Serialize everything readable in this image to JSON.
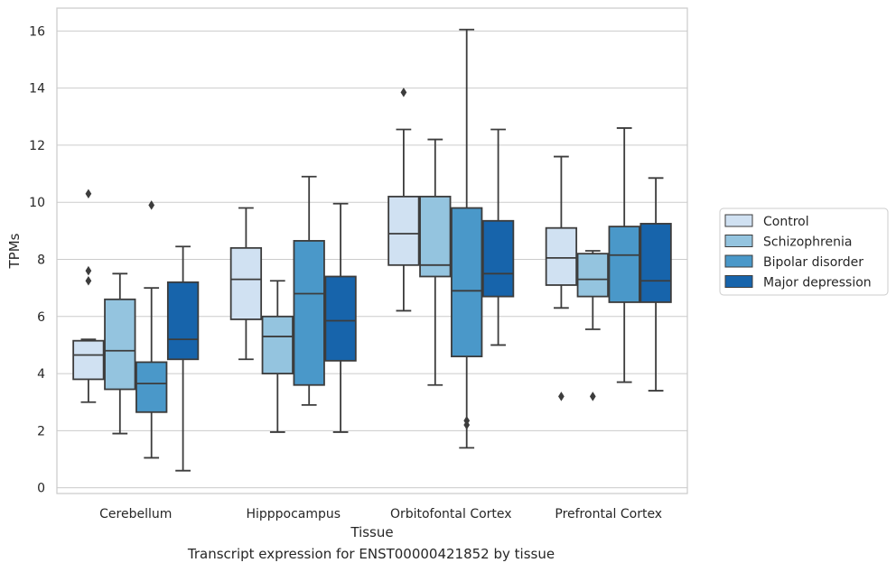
{
  "caption": "Transcript expression for ENST00000421852 by tissue",
  "chart_data": {
    "type": "boxplot",
    "title": "",
    "xlabel": "Tissue",
    "ylabel": "TPMs",
    "ylim": [
      -0.2,
      16.8
    ],
    "yticks": [
      0,
      2,
      4,
      6,
      8,
      10,
      12,
      14,
      16
    ],
    "grid": "horizontal",
    "legend_position": "right",
    "categories": [
      "Cerebellum",
      "Hipppocampus",
      "Orbitofontal Cortex",
      "Prefrontal Cortex"
    ],
    "series": [
      {
        "name": "Control",
        "color": "#d0e1f2",
        "boxes": [
          {
            "whislo": 3.0,
            "q1": 3.8,
            "med": 4.65,
            "q3": 5.15,
            "whishi": 5.2,
            "fliers": [
              7.25,
              7.6,
              10.3
            ]
          },
          {
            "whislo": 4.5,
            "q1": 5.9,
            "med": 7.3,
            "q3": 8.4,
            "whishi": 9.8,
            "fliers": []
          },
          {
            "whislo": 6.2,
            "q1": 7.8,
            "med": 8.9,
            "q3": 10.2,
            "whishi": 12.55,
            "fliers": [
              13.85
            ]
          },
          {
            "whislo": 6.3,
            "q1": 7.1,
            "med": 8.05,
            "q3": 9.1,
            "whishi": 11.6,
            "fliers": [
              3.2
            ]
          }
        ]
      },
      {
        "name": "Schizophrenia",
        "color": "#94c4df",
        "boxes": [
          {
            "whislo": 1.9,
            "q1": 3.45,
            "med": 4.8,
            "q3": 6.6,
            "whishi": 7.5,
            "fliers": []
          },
          {
            "whislo": 1.95,
            "q1": 4.0,
            "med": 5.3,
            "q3": 6.0,
            "whishi": 7.25,
            "fliers": []
          },
          {
            "whislo": 3.6,
            "q1": 7.4,
            "med": 7.8,
            "q3": 10.2,
            "whishi": 12.2,
            "fliers": []
          },
          {
            "whislo": 5.55,
            "q1": 6.7,
            "med": 7.3,
            "q3": 8.2,
            "whishi": 8.3,
            "fliers": [
              3.2
            ]
          }
        ]
      },
      {
        "name": "Bipolar disorder",
        "color": "#4a98c9",
        "boxes": [
          {
            "whislo": 1.05,
            "q1": 2.65,
            "med": 3.65,
            "q3": 4.4,
            "whishi": 7.0,
            "fliers": [
              9.9
            ]
          },
          {
            "whislo": 2.9,
            "q1": 3.6,
            "med": 6.8,
            "q3": 8.65,
            "whishi": 10.9,
            "fliers": []
          },
          {
            "whislo": 1.4,
            "q1": 4.6,
            "med": 6.9,
            "q3": 9.8,
            "whishi": 16.05,
            "fliers": [
              2.2,
              2.35
            ]
          },
          {
            "whislo": 3.7,
            "q1": 6.5,
            "med": 8.15,
            "q3": 9.15,
            "whishi": 12.6,
            "fliers": []
          }
        ]
      },
      {
        "name": "Major depression",
        "color": "#1764ab",
        "boxes": [
          {
            "whislo": 0.6,
            "q1": 4.5,
            "med": 5.2,
            "q3": 7.2,
            "whishi": 8.45,
            "fliers": []
          },
          {
            "whislo": 1.95,
            "q1": 4.45,
            "med": 5.85,
            "q3": 7.4,
            "whishi": 9.95,
            "fliers": []
          },
          {
            "whislo": 5.0,
            "q1": 6.7,
            "med": 7.5,
            "q3": 9.35,
            "whishi": 12.55,
            "fliers": []
          },
          {
            "whislo": 3.4,
            "q1": 6.5,
            "med": 7.25,
            "q3": 9.25,
            "whishi": 10.85,
            "fliers": []
          }
        ]
      }
    ]
  }
}
